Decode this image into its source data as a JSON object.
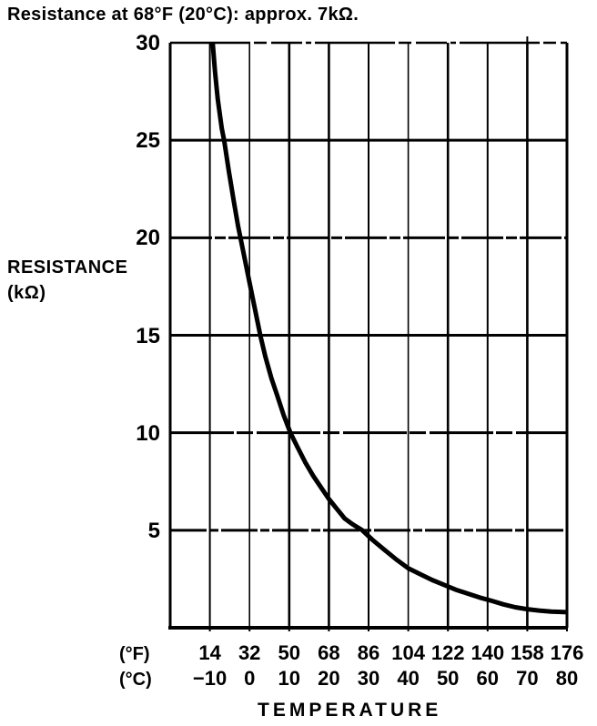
{
  "page": {
    "background": "#ffffff",
    "ink": "#000000"
  },
  "chart_data": {
    "type": "line",
    "title": "Resistance at 68°F (20°C): approx. 7kΩ.",
    "xlabel": "TEMPERATURE",
    "ylabel_line1": "RESISTANCE",
    "ylabel_line2": "(kΩ)",
    "grid": true,
    "legend": "none",
    "x_axis": {
      "range_c": [
        -20,
        80
      ],
      "gridlines_c": [
        -10,
        0,
        10,
        20,
        30,
        40,
        50,
        60,
        70,
        80
      ],
      "rows": [
        {
          "unit": "(°F)",
          "ticks": [
            "14",
            "32",
            "50",
            "68",
            "86",
            "104",
            "122",
            "140",
            "158",
            "176"
          ]
        },
        {
          "unit": "(°C)",
          "ticks": [
            "−10",
            "0",
            "10",
            "20",
            "30",
            "40",
            "50",
            "60",
            "70",
            "80"
          ]
        }
      ]
    },
    "y_axis": {
      "range": [
        0,
        30
      ],
      "ticks": [
        "30",
        "25",
        "20",
        "15",
        "10",
        "5"
      ],
      "tick_values": [
        30,
        25,
        20,
        15,
        10,
        5
      ],
      "gridlines": [
        25,
        20,
        15,
        10,
        5
      ]
    },
    "series": [
      {
        "name": "thermistor-resistance-curve",
        "x_unit": "°C",
        "y_unit": "kΩ",
        "points": [
          [
            -9.3,
            30
          ],
          [
            -8.7,
            28.5
          ],
          [
            -8,
            27.1
          ],
          [
            -7,
            25.6
          ],
          [
            -6.4,
            25
          ],
          [
            -5.2,
            23.4
          ],
          [
            -4,
            21.9
          ],
          [
            -2.9,
            20.6
          ],
          [
            -2.3,
            20
          ],
          [
            -1.2,
            18.9
          ],
          [
            0,
            17.7
          ],
          [
            1.3,
            16.4
          ],
          [
            2.7,
            15
          ],
          [
            4,
            13.9
          ],
          [
            5.5,
            12.8
          ],
          [
            7,
            11.9
          ],
          [
            8.6,
            10.9
          ],
          [
            10.3,
            10
          ],
          [
            12,
            9.3
          ],
          [
            14,
            8.5
          ],
          [
            16,
            7.8
          ],
          [
            18,
            7.2
          ],
          [
            20,
            6.6
          ],
          [
            22,
            6.1
          ],
          [
            24,
            5.6
          ],
          [
            26,
            5.3
          ],
          [
            28.4,
            5
          ],
          [
            31,
            4.5
          ],
          [
            34,
            4
          ],
          [
            37,
            3.5
          ],
          [
            40,
            3.05
          ],
          [
            43,
            2.75
          ],
          [
            46,
            2.45
          ],
          [
            49,
            2.2
          ],
          [
            52,
            1.95
          ],
          [
            55,
            1.75
          ],
          [
            58,
            1.55
          ],
          [
            61,
            1.38
          ],
          [
            64,
            1.2
          ],
          [
            67,
            1.05
          ],
          [
            70,
            0.95
          ],
          [
            73,
            0.88
          ],
          [
            76,
            0.83
          ],
          [
            80,
            0.8
          ]
        ]
      }
    ]
  }
}
